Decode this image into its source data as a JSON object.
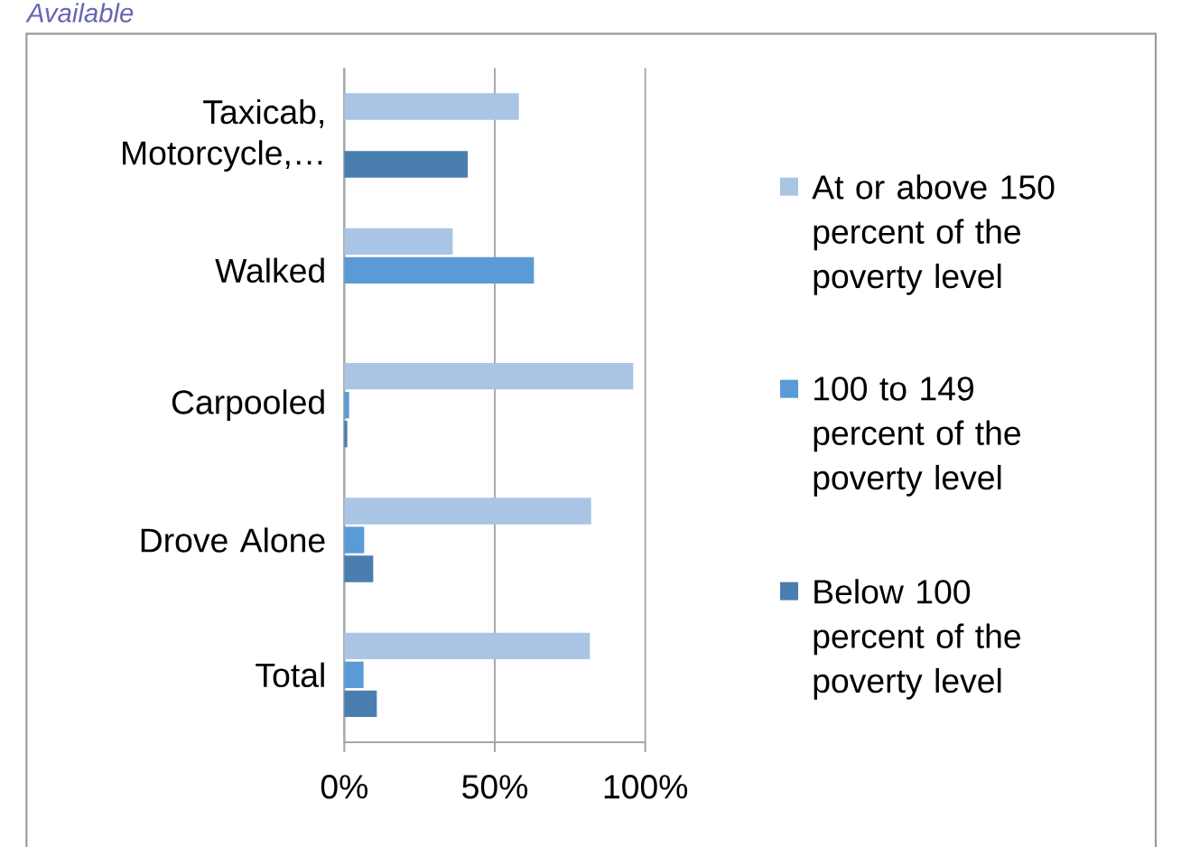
{
  "chart_data": {
    "type": "bar",
    "orientation": "horizontal",
    "categories": [
      "Taxicab, Motorcycle,…",
      "Walked",
      "Carpooled",
      "Drove Alone",
      "Total"
    ],
    "series": [
      {
        "name": "At or above 150 percent of the poverty level",
        "color": "#a9c4e4",
        "values": [
          58,
          36,
          96,
          82,
          81.6
        ]
      },
      {
        "name": "100 to 149 percent of the poverty level",
        "color": "#5b9bd5",
        "values": [
          null,
          63,
          1.6,
          6.6,
          6.4
        ]
      },
      {
        "name": "Below 100 percent of the poverty level",
        "color": "#4a7eb0",
        "values": [
          41,
          null,
          1,
          9.6,
          10.8
        ]
      }
    ],
    "xlim": [
      0,
      100
    ],
    "xticks": [
      {
        "value": 0,
        "label": "0%"
      },
      {
        "value": 50,
        "label": "50%"
      },
      {
        "value": 100,
        "label": "100%"
      }
    ],
    "grid": "x",
    "legend": "right",
    "annotations": [
      "Available"
    ]
  }
}
